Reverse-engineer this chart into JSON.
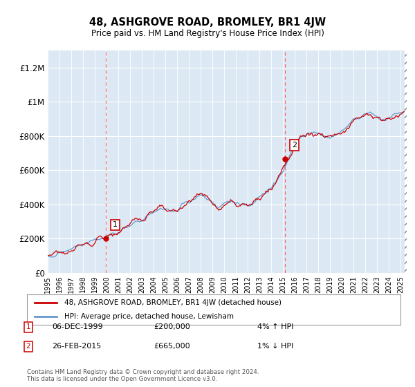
{
  "title": "48, ASHGROVE ROAD, BROMLEY, BR1 4JW",
  "subtitle": "Price paid vs. HM Land Registry's House Price Index (HPI)",
  "plot_bg_color": "#dce9f5",
  "ylabel_ticks": [
    "£0",
    "£200K",
    "£400K",
    "£600K",
    "£800K",
    "£1M",
    "£1.2M"
  ],
  "ytick_values": [
    0,
    200000,
    400000,
    600000,
    800000,
    1000000,
    1200000
  ],
  "ylim": [
    0,
    1300000
  ],
  "xlim_start": 1995.0,
  "xlim_end": 2025.5,
  "hpi_color": "#6699cc",
  "price_color": "#cc0000",
  "vline_color": "#ff6666",
  "marker1_x": 1999.92,
  "marker1_y": 200000,
  "marker2_x": 2015.15,
  "marker2_y": 665000,
  "legend_line1": "48, ASHGROVE ROAD, BROMLEY, BR1 4JW (detached house)",
  "legend_line2": "HPI: Average price, detached house, Lewisham",
  "note1_date": "06-DEC-1999",
  "note1_price": "£200,000",
  "note1_hpi": "4% ↑ HPI",
  "note2_date": "26-FEB-2015",
  "note2_price": "£665,000",
  "note2_hpi": "1% ↓ HPI",
  "footer": "Contains HM Land Registry data © Crown copyright and database right 2024.\nThis data is licensed under the Open Government Licence v3.0."
}
